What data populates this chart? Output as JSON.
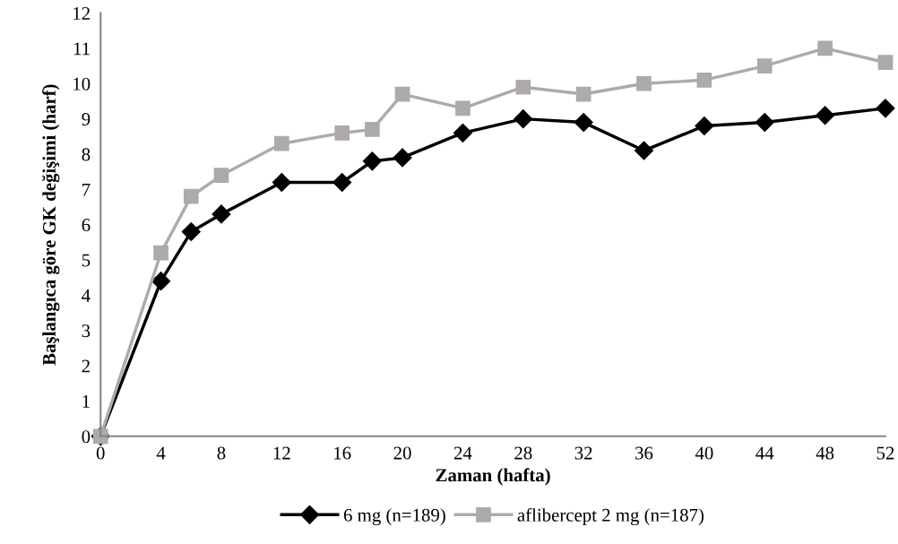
{
  "chart_data": {
    "type": "line",
    "xlabel": "Zaman (hafta)",
    "ylabel": "Başlangıca göre GK değişimi (harf)",
    "x": [
      0,
      4,
      6,
      8,
      12,
      16,
      18,
      20,
      24,
      28,
      32,
      36,
      40,
      44,
      48,
      52
    ],
    "series": [
      {
        "name": "6 mg (n=189)",
        "color": "#000000",
        "marker": "diamond",
        "values": [
          0,
          4.4,
          5.8,
          6.3,
          7.2,
          7.2,
          7.8,
          7.9,
          8.6,
          9.0,
          8.9,
          8.1,
          8.8,
          8.9,
          9.1,
          9.3
        ]
      },
      {
        "name": "aflibercept 2 mg (n=187)",
        "color": "#aeaaaa",
        "marker": "square",
        "values": [
          0,
          5.2,
          6.8,
          7.4,
          8.3,
          8.6,
          8.7,
          9.7,
          9.3,
          9.9,
          9.7,
          10.0,
          10.1,
          10.5,
          11.0,
          10.6
        ]
      }
    ],
    "xlim": [
      0,
      52
    ],
    "xticks": [
      0,
      4,
      8,
      12,
      16,
      20,
      24,
      28,
      32,
      36,
      40,
      44,
      48,
      52
    ],
    "ylim": [
      0,
      12
    ],
    "yticks": [
      0,
      1,
      2,
      3,
      4,
      5,
      6,
      7,
      8,
      9,
      10,
      11,
      12
    ],
    "grid": false,
    "legend": "bottom"
  }
}
